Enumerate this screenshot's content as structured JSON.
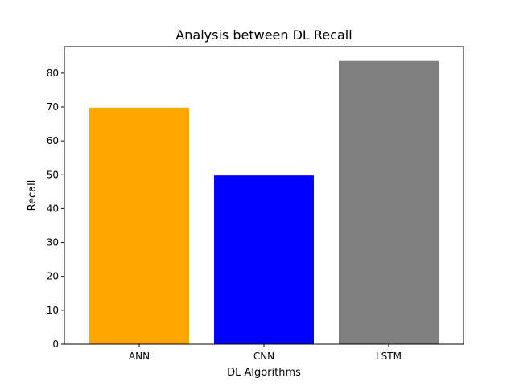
{
  "chart_data": {
    "type": "bar",
    "title": "Analysis between DL Recall",
    "xlabel": "DL Algorithms",
    "ylabel": "Recall",
    "categories": [
      "ANN",
      "CNN",
      "LSTM"
    ],
    "values": [
      69.8,
      49.8,
      83.6
    ],
    "colors": [
      "#ffa500",
      "#0000ff",
      "#808080"
    ],
    "ylim": [
      0,
      87.8
    ],
    "yticks": [
      0,
      10,
      20,
      30,
      40,
      50,
      60,
      70,
      80
    ],
    "grid": false,
    "legend": "none"
  }
}
